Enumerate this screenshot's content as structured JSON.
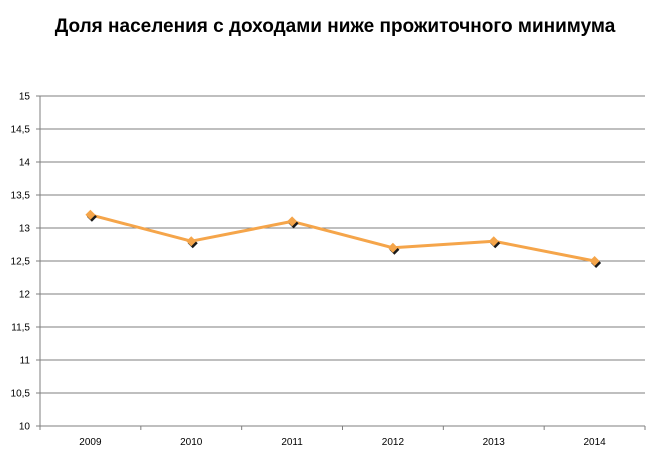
{
  "chart_data": {
    "type": "line",
    "title": "Доля населения с доходами ниже прожиточного минимума",
    "xlabel": "",
    "ylabel": "",
    "categories": [
      "2009",
      "2010",
      "2011",
      "2012",
      "2013",
      "2014"
    ],
    "series": [
      {
        "values": [
          13.2,
          12.8,
          13.1,
          12.7,
          12.8,
          12.5
        ]
      }
    ],
    "ylim": [
      10,
      15
    ],
    "y_ticks": [
      "10",
      "10,5",
      "11",
      "11,5",
      "12",
      "12,5",
      "13",
      "13,5",
      "14",
      "14,5",
      "15"
    ],
    "grid": true,
    "legend": "none",
    "colors": {
      "line": "#f5a54a",
      "marker": "#f5a54a",
      "marker_shadow": "#1a1a1a",
      "grid": "#7f7f7f"
    }
  }
}
